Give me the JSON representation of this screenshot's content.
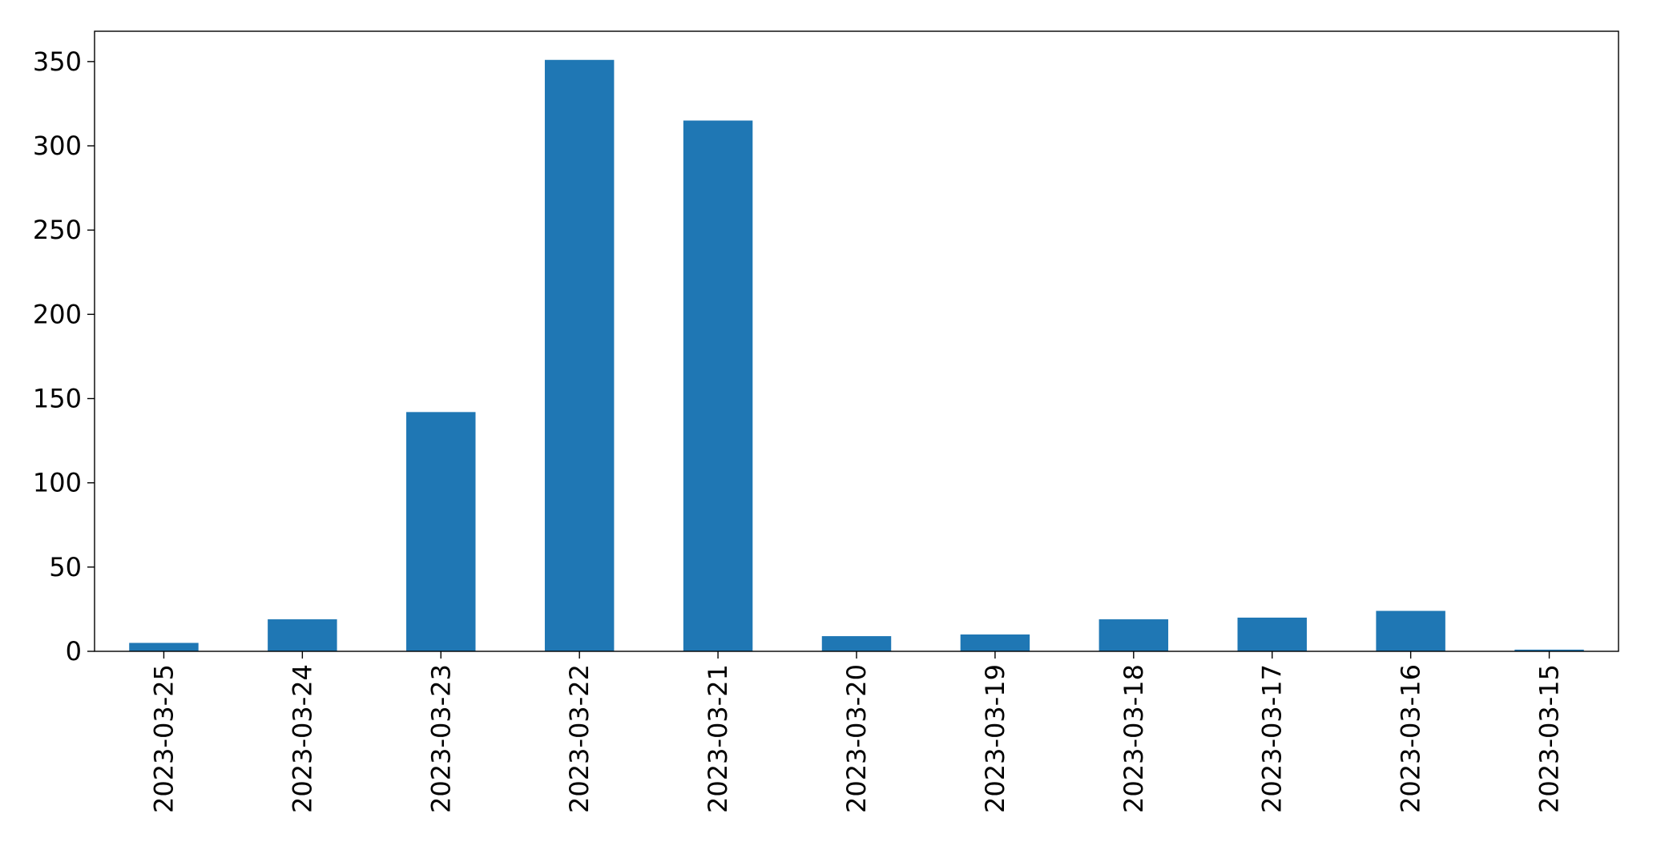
{
  "chart_data": {
    "type": "bar",
    "title": "",
    "xlabel": "",
    "ylabel": "",
    "categories": [
      "2023-03-25",
      "2023-03-24",
      "2023-03-23",
      "2023-03-22",
      "2023-03-21",
      "2023-03-20",
      "2023-03-19",
      "2023-03-18",
      "2023-03-17",
      "2023-03-16",
      "2023-03-15"
    ],
    "values": [
      5,
      19,
      142,
      351,
      315,
      9,
      10,
      19,
      20,
      24,
      1
    ],
    "ylim": [
      0,
      368
    ],
    "yticks": [
      0,
      50,
      100,
      150,
      200,
      250,
      300,
      350
    ],
    "grid": false,
    "legend": "none",
    "bar_color": "#1f77b4"
  }
}
